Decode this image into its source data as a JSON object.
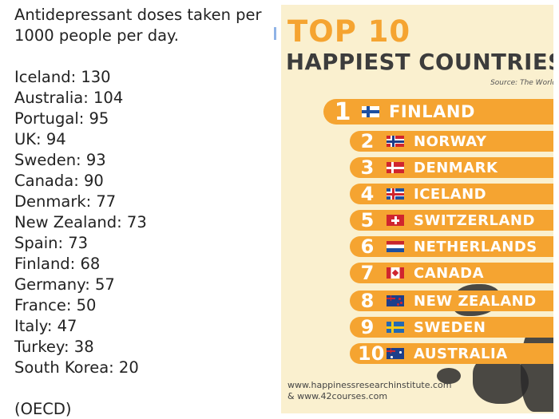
{
  "left": {
    "title_line1": "Antidepressant doses taken per",
    "title_line2": "1000 people per day.",
    "rows": [
      "Iceland: 130",
      "Australia: 104",
      "Portugal: 95",
      "UK: 94",
      "Sweden: 93",
      "Canada: 90",
      "Denmark: 77",
      "New Zealand: 73",
      "Spain: 73",
      "Finland: 68",
      "Germany: 57",
      "France: 50",
      "Italy: 47",
      "Turkey: 38",
      "South Korea: 20"
    ],
    "source": "(OECD)"
  },
  "infographic": {
    "heading_top": "TOP 10",
    "heading_main": "HAPPIEST COUNTRIES",
    "source": "Source: The World",
    "countries": [
      {
        "rank": "1",
        "name": "FINLAND",
        "flag": "finland-flag"
      },
      {
        "rank": "2",
        "name": "NORWAY",
        "flag": "norway-flag"
      },
      {
        "rank": "3",
        "name": "DENMARK",
        "flag": "denmark-flag"
      },
      {
        "rank": "4",
        "name": "ICELAND",
        "flag": "iceland-flag"
      },
      {
        "rank": "5",
        "name": "SWITZERLAND",
        "flag": "switzerland-flag"
      },
      {
        "rank": "6",
        "name": "NETHERLANDS",
        "flag": "netherlands-flag"
      },
      {
        "rank": "7",
        "name": "CANADA",
        "flag": "canada-flag"
      },
      {
        "rank": "8",
        "name": "NEW ZEALAND",
        "flag": "new-zealand-flag"
      },
      {
        "rank": "9",
        "name": "SWEDEN",
        "flag": "sweden-flag"
      },
      {
        "rank": "10",
        "name": "AUSTRALIA",
        "flag": "australia-flag"
      }
    ],
    "footer_line1": "www.happinessresearchinstitute.com",
    "footer_line2": "& www.42courses.com"
  },
  "colors": {
    "accent": "#f5a431",
    "panel_bg": "#faf0cf",
    "heading_dark": "#3c3c3c"
  }
}
